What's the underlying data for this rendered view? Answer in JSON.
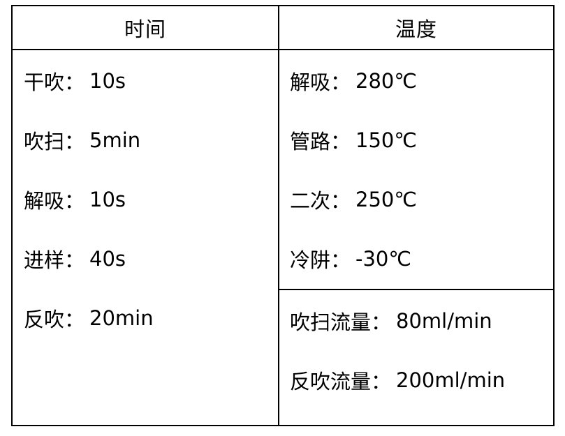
{
  "page": {
    "background_color": "#ffffff",
    "text_color": "#000000",
    "border_color": "#000000"
  },
  "table": {
    "headers": {
      "time": "时间",
      "temperature": "温度"
    },
    "time_rows": [
      {
        "label": "干吹：",
        "value": "10s"
      },
      {
        "label": "吹扫：",
        "value": "5min"
      },
      {
        "label": "解吸：",
        "value": "10s"
      },
      {
        "label": "进样：",
        "value": "40s"
      },
      {
        "label": "反吹：",
        "value": "20min"
      }
    ],
    "temperature_rows": [
      {
        "label": "解吸：",
        "value": "280℃"
      },
      {
        "label": "管路：",
        "value": "150℃"
      },
      {
        "label": "二次：",
        "value": "250℃"
      },
      {
        "label": "冷阱：",
        "value": "-30℃"
      }
    ],
    "flow_rows": [
      {
        "label": "吹扫流量：",
        "value": "80ml/min"
      },
      {
        "label": "反吹流量：",
        "value": "200ml/min"
      }
    ]
  }
}
